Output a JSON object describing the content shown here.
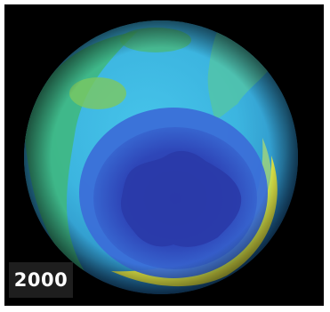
{
  "image": {
    "subject": "ozone-hole-globe",
    "year_label": "2000",
    "colors": {
      "background": "#000000",
      "frame": "#ffffff",
      "label_bg": "#1e1e1e",
      "label_text": "#ffffff",
      "ozone_hole_deep": "#2a3aa8",
      "ozone_low": "#3b6fd8",
      "ozone_mid": "#38b8e8",
      "ozone_green": "#3fb87a",
      "ozone_high": "#f2ee3a"
    }
  }
}
